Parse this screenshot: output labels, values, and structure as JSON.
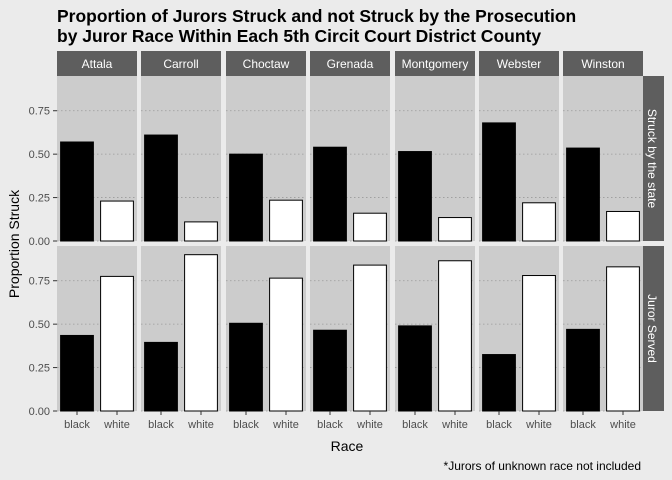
{
  "chart_data": {
    "type": "bar",
    "title_lines": [
      "Proportion of Jurors Struck and not Struck by the Prosecution",
      "by Juror Race Within Each 5th Circit Court District County"
    ],
    "xlabel": "Race",
    "ylabel": "Proportion Struck",
    "caption": "*Jurors of unknown race not included",
    "categories": [
      "black",
      "white"
    ],
    "bar_colors": {
      "black": "#000000",
      "white": "#ffffff"
    },
    "ylim": [
      0,
      0.95
    ],
    "yticks": [
      "0.00",
      "0.25",
      "0.50",
      "0.75"
    ],
    "grid": true,
    "columns": [
      "Attala",
      "Carroll",
      "Choctaw",
      "Grenada",
      "Montgomery",
      "Webster",
      "Winston"
    ],
    "rows": [
      "Struck by the state",
      "Juror Served"
    ],
    "panels": [
      [
        {
          "county": "Attala",
          "values": [
            0.57,
            0.23
          ]
        },
        {
          "county": "Carroll",
          "values": [
            0.61,
            0.11
          ]
        },
        {
          "county": "Choctaw",
          "values": [
            0.5,
            0.235
          ]
        },
        {
          "county": "Grenada",
          "values": [
            0.54,
            0.16
          ]
        },
        {
          "county": "Montgomery",
          "values": [
            0.515,
            0.135
          ]
        },
        {
          "county": "Webster",
          "values": [
            0.68,
            0.22
          ]
        },
        {
          "county": "Winston",
          "values": [
            0.535,
            0.17
          ]
        }
      ],
      [
        {
          "county": "Attala",
          "values": [
            0.435,
            0.775
          ]
        },
        {
          "county": "Carroll",
          "values": [
            0.395,
            0.9
          ]
        },
        {
          "county": "Choctaw",
          "values": [
            0.505,
            0.765
          ]
        },
        {
          "county": "Grenada",
          "values": [
            0.465,
            0.84
          ]
        },
        {
          "county": "Montgomery",
          "values": [
            0.49,
            0.865
          ]
        },
        {
          "county": "Webster",
          "values": [
            0.325,
            0.78
          ]
        },
        {
          "county": "Winston",
          "values": [
            0.47,
            0.83
          ]
        }
      ]
    ]
  }
}
